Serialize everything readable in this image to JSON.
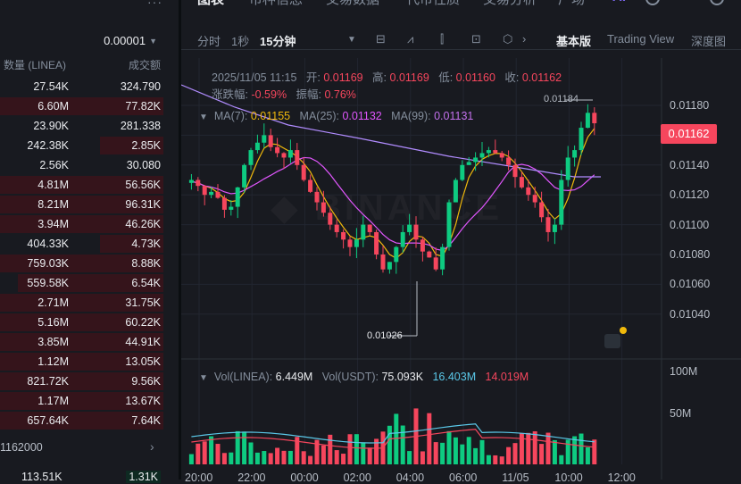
{
  "orderbook": {
    "precision": "0.00001",
    "col_qty": "数量 (LINEA)",
    "col_total": "成交额",
    "rows": [
      {
        "qty": "27.54K",
        "total": "324.790",
        "bar": 0.0
      },
      {
        "qty": "6.60M",
        "total": "77.82K",
        "bar": 1.0
      },
      {
        "qty": "23.90K",
        "total": "281.338",
        "bar": 0.0
      },
      {
        "qty": "242.38K",
        "total": "2.85K",
        "bar": 0.39
      },
      {
        "qty": "2.56K",
        "total": "30.080",
        "bar": 0.0
      },
      {
        "qty": "4.81M",
        "total": "56.56K",
        "bar": 1.0
      },
      {
        "qty": "8.21M",
        "total": "96.31K",
        "bar": 1.0
      },
      {
        "qty": "3.94M",
        "total": "46.26K",
        "bar": 1.0
      },
      {
        "qty": "404.33K",
        "total": "4.73K",
        "bar": 0.39
      },
      {
        "qty": "759.03K",
        "total": "8.88K",
        "bar": 1.0
      },
      {
        "qty": "559.58K",
        "total": "6.54K",
        "bar": 0.89
      },
      {
        "qty": "2.71M",
        "total": "31.75K",
        "bar": 1.0
      },
      {
        "qty": "5.16M",
        "total": "60.22K",
        "bar": 1.0
      },
      {
        "qty": "3.85M",
        "total": "44.91K",
        "bar": 1.0
      },
      {
        "qty": "1.12M",
        "total": "13.05K",
        "bar": 1.0
      },
      {
        "qty": "821.72K",
        "total": "9.56K",
        "bar": 1.0
      },
      {
        "qty": "1.17M",
        "total": "13.67K",
        "bar": 1.0
      },
      {
        "qty": "657.64K",
        "total": "7.64K",
        "bar": 1.0
      }
    ],
    "last_price": "1162000",
    "bottom_qty": "113.51K",
    "bottom_total": "1.31K"
  },
  "tabs": [
    "图表",
    "币种信息",
    "交易数据",
    "代币性质",
    "交易分析",
    "广场"
  ],
  "toolbar": {
    "time": "分时",
    "sec": "1秒",
    "interval": "15分钟",
    "view_basic": "基本版",
    "view_tv": "Trading View",
    "view_depth": "深度图"
  },
  "info": {
    "date": "2025/11/05 11:15",
    "open_label": "开:",
    "open": "0.01169",
    "high_label": "高:",
    "high": "0.01169",
    "low_label": "低:",
    "low": "0.01160",
    "close_label": "收:",
    "close": "0.01162",
    "chg_label": "涨跌幅:",
    "chg": "-0.59%",
    "amp_label": "振幅:",
    "amp": "0.76%",
    "ma7_label": "MA(7):",
    "ma7": "0.01155",
    "ma25_label": "MA(25):",
    "ma25": "0.01132",
    "ma99_label": "MA(99):",
    "ma99": "0.01131",
    "vol_label": "Vol(LINEA):",
    "vol": "6.449M",
    "volu_label": "Vol(USDT):",
    "volu": "75.093K",
    "volu2": "16.403M",
    "volu3": "14.019M"
  },
  "price_tag": "0.01162",
  "high_mark": "0.01184",
  "low_mark": "0.01026",
  "y_labels": [
    "0.01180",
    "0.01160",
    "0.01140",
    "0.01120",
    "0.01100",
    "0.01080",
    "0.01060",
    "0.01040"
  ],
  "vol_labels": [
    "100M",
    "50M"
  ],
  "x_labels": [
    "20:00",
    "22:00",
    "00:00",
    "02:00",
    "04:00",
    "06:00",
    "11/05",
    "10:00",
    "12:00"
  ],
  "colors": {
    "up": "#0ecb81",
    "down": "#f6465d",
    "bg": "#181a20",
    "ma7": "#f0b90b",
    "ma25": "#e056fd",
    "ma99": "#b18cff"
  }
}
